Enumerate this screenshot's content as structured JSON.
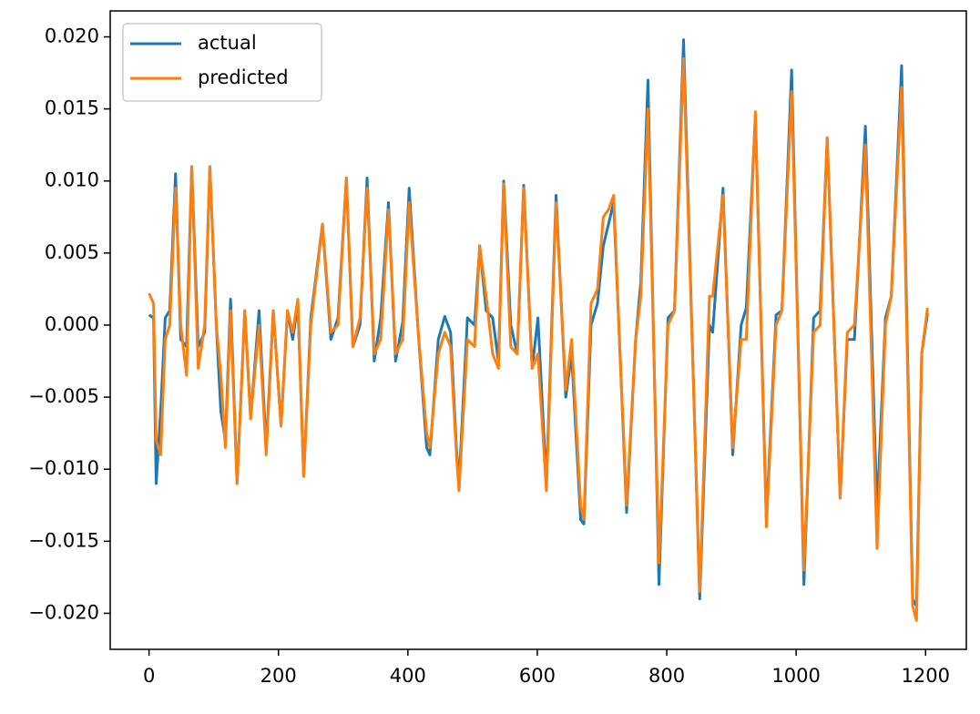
{
  "chart_data": {
    "type": "line",
    "x": [
      0,
      7,
      11,
      18,
      25,
      32,
      41,
      49,
      58,
      66,
      76,
      86,
      94,
      104,
      111,
      118,
      126,
      136,
      148,
      157,
      170,
      181,
      192,
      204,
      214,
      222,
      230,
      239,
      250,
      268,
      281,
      292,
      305,
      315,
      326,
      337,
      348,
      358,
      370,
      381,
      392,
      402,
      416,
      429,
      434,
      447,
      457,
      466,
      475,
      479,
      492,
      503,
      511,
      521,
      531,
      540,
      548,
      559,
      569,
      579,
      592,
      601,
      614,
      629,
      644,
      653,
      667,
      672,
      683,
      693,
      702,
      710,
      718,
      726,
      738,
      752,
      760,
      771,
      788,
      802,
      812,
      826,
      851,
      866,
      871,
      887,
      902,
      915,
      923,
      937,
      954,
      969,
      978,
      993,
      1012,
      1027,
      1037,
      1048,
      1068,
      1079,
      1090,
      1107,
      1125,
      1138,
      1147,
      1163,
      1180,
      1186,
      1194,
      1203
    ],
    "series": [
      {
        "name": "actual",
        "color": "#1f77b4",
        "values": [
          0.0007,
          0.0005,
          -0.011,
          -0.006,
          0.0005,
          0.001,
          0.0105,
          -0.001,
          -0.0015,
          0.011,
          -0.0015,
          -0.0005,
          0.011,
          0.0,
          -0.006,
          -0.008,
          0.0018,
          -0.011,
          0.001,
          -0.0065,
          0.001,
          -0.0085,
          0.001,
          -0.007,
          0.001,
          -0.001,
          0.0015,
          -0.0105,
          0.0005,
          0.007,
          -0.001,
          0.0005,
          0.0102,
          -0.0015,
          0.0,
          0.0102,
          -0.0025,
          0.0005,
          0.0085,
          -0.0025,
          0.0002,
          0.0095,
          -0.0005,
          -0.0085,
          -0.009,
          -0.001,
          0.0006,
          -0.0005,
          -0.0085,
          -0.011,
          0.0005,
          0.0,
          0.0055,
          0.001,
          0.0005,
          -0.0025,
          0.01,
          0.0,
          -0.002,
          0.0097,
          -0.003,
          0.0005,
          -0.011,
          0.009,
          -0.005,
          -0.002,
          -0.0135,
          -0.0138,
          0.0,
          0.0015,
          0.0055,
          0.007,
          0.0085,
          0.0,
          -0.013,
          -0.001,
          0.003,
          0.017,
          -0.018,
          0.0005,
          0.001,
          0.0198,
          -0.019,
          0.0,
          -0.0005,
          0.0095,
          -0.009,
          0.0,
          0.0012,
          0.0145,
          -0.0135,
          0.0007,
          0.001,
          0.0177,
          -0.018,
          0.0005,
          0.001,
          0.013,
          -0.012,
          -0.001,
          -0.001,
          0.0138,
          -0.013,
          0.0005,
          0.002,
          0.018,
          -0.019,
          -0.0195,
          -0.002,
          0.0008
        ]
      },
      {
        "name": "predicted",
        "color": "#ff7f0e",
        "values": [
          0.0022,
          0.0015,
          -0.008,
          -0.009,
          -0.001,
          0.0,
          0.0095,
          0.0,
          -0.0035,
          0.011,
          -0.003,
          0.0,
          0.011,
          0.0,
          -0.0035,
          -0.0085,
          0.001,
          -0.011,
          0.001,
          -0.0065,
          0.0,
          -0.009,
          0.001,
          -0.007,
          0.001,
          -0.0005,
          0.0018,
          -0.0105,
          0.0,
          0.007,
          -0.0005,
          0.0,
          0.0102,
          -0.0015,
          0.0005,
          0.0095,
          -0.002,
          -0.001,
          0.008,
          -0.002,
          -0.001,
          0.0085,
          -0.0005,
          -0.0075,
          -0.0085,
          -0.002,
          -0.0005,
          -0.0015,
          -0.009,
          -0.0115,
          -0.001,
          -0.0015,
          0.0055,
          0.002,
          -0.002,
          -0.003,
          0.0098,
          -0.0015,
          -0.002,
          0.0095,
          -0.003,
          -0.002,
          -0.0115,
          0.0085,
          -0.0045,
          -0.001,
          -0.0125,
          -0.0135,
          0.0015,
          0.0025,
          0.0075,
          0.008,
          0.009,
          0.0,
          -0.0125,
          -0.001,
          0.002,
          0.015,
          -0.0165,
          0.0,
          0.001,
          0.0185,
          -0.0185,
          0.002,
          0.002,
          0.009,
          -0.0085,
          -0.001,
          -0.001,
          0.0148,
          -0.014,
          0.0,
          0.001,
          0.0162,
          -0.017,
          -0.0005,
          0.0,
          0.013,
          -0.012,
          -0.0005,
          0.0,
          0.0125,
          -0.0155,
          0.0,
          0.002,
          0.0165,
          -0.0195,
          -0.0205,
          -0.002,
          0.0012
        ]
      }
    ],
    "xlim": [
      -60,
      1263
    ],
    "ylim": [
      -0.0225,
      0.0218
    ],
    "xticks": [
      0,
      200,
      400,
      600,
      800,
      1000,
      1200
    ],
    "yticks": [
      {
        "value": -0.02,
        "label": "−0.020"
      },
      {
        "value": -0.015,
        "label": "−0.015"
      },
      {
        "value": -0.01,
        "label": "−0.010"
      },
      {
        "value": -0.005,
        "label": "−0.005"
      },
      {
        "value": 0,
        "label": "0.000"
      },
      {
        "value": 0.005,
        "label": "0.005"
      },
      {
        "value": 0.01,
        "label": "0.010"
      },
      {
        "value": 0.015,
        "label": "0.015"
      },
      {
        "value": 0.02,
        "label": "0.020"
      }
    ],
    "legend": "upper left"
  }
}
